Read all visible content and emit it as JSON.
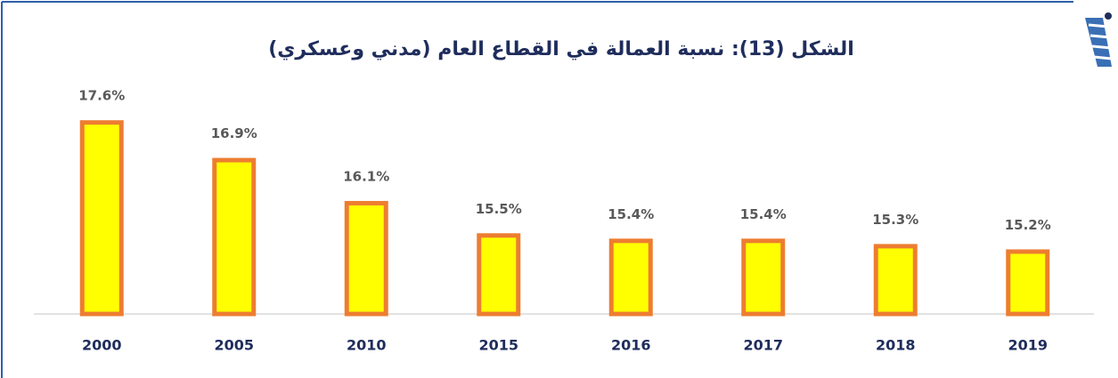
{
  "chart_data": {
    "type": "bar",
    "title": "الشكل (13): نسبة العمالة في القطاع العام (مدني وعسكري)",
    "categories": [
      "2000",
      "2005",
      "2010",
      "2015",
      "2016",
      "2017",
      "2018",
      "2019"
    ],
    "values": [
      17.6,
      16.9,
      16.1,
      15.5,
      15.4,
      15.4,
      15.3,
      15.2
    ],
    "value_labels": [
      "17.6%",
      "16.9%",
      "16.1%",
      "15.5%",
      "15.4%",
      "15.4%",
      "15.3%",
      "15.2%"
    ],
    "color": "#ffff00",
    "edge_color": "#ed7d31",
    "ylim": [
      14,
      18
    ]
  }
}
